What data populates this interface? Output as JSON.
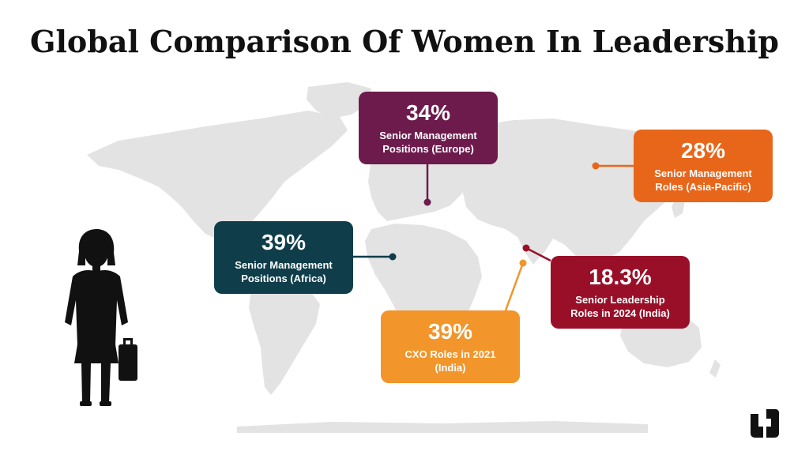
{
  "title": "Global Comparison Of Women In Leadership",
  "colors": {
    "land": "#e3e3e3",
    "europe": "#6d1b4d",
    "africa": "#0f3d4a",
    "asia_pacific": "#e8661a",
    "india_leadership": "#9a0f28",
    "india_cxo": "#f2952a",
    "figure": "#111111"
  },
  "callouts": {
    "europe": {
      "percent": "34%",
      "label_line1": "Senior Management",
      "label_line2": "Positions (Europe)"
    },
    "asia_pacific": {
      "percent": "28%",
      "label_line1": "Senior Management",
      "label_line2": "Roles (Asia-Pacific)"
    },
    "africa": {
      "percent": "39%",
      "label_line1": "Senior Management",
      "label_line2": "Positions (Africa)"
    },
    "india_leadership": {
      "percent": "18.3%",
      "label_line1": "Senior Leadership",
      "label_line2": "Roles in 2024 (India)"
    },
    "india_cxo": {
      "percent": "39%",
      "label_line1": "CXO Roles in 2021",
      "label_line2": "(India)"
    }
  },
  "icons": [
    "world-map-icon",
    "businesswoman-icon",
    "brand-logo-icon"
  ]
}
